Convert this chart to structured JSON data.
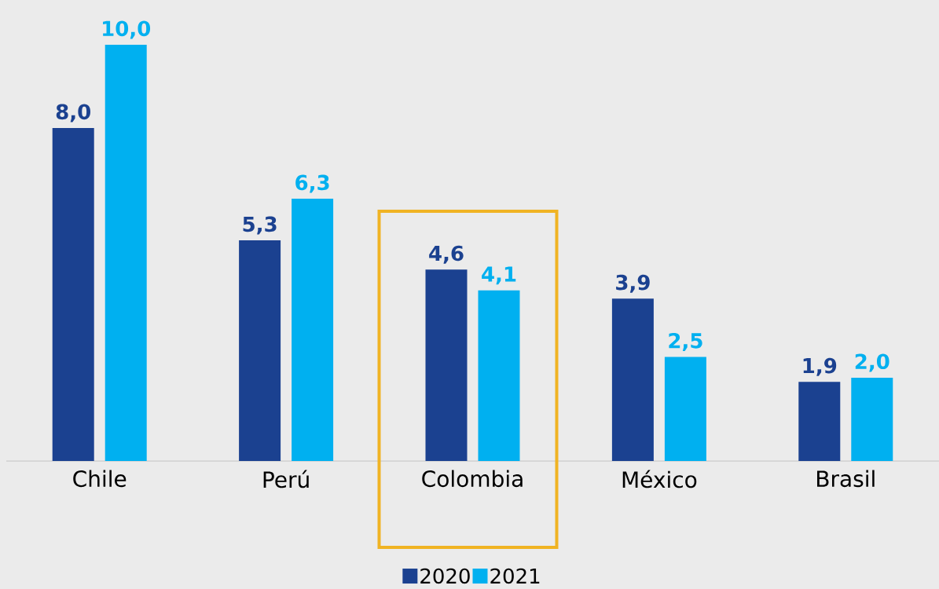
{
  "chart_data": {
    "type": "bar",
    "categories": [
      "Chile",
      "Perú",
      "Colombia",
      "México",
      "Brasil"
    ],
    "series": [
      {
        "name": "2020",
        "color": "#1b4190",
        "values": [
          8.0,
          5.3,
          4.6,
          3.9,
          1.9
        ],
        "value_labels": [
          "8,0",
          "5,3",
          "4,6",
          "3,9",
          "1,9"
        ]
      },
      {
        "name": "2021",
        "color": "#00b0f0",
        "values": [
          10.0,
          6.3,
          4.1,
          2.5,
          2.0
        ],
        "value_labels": [
          "10,0",
          "6,3",
          "4,1",
          "2,5",
          "2,0"
        ]
      }
    ],
    "legend": "bottom"
  }
}
